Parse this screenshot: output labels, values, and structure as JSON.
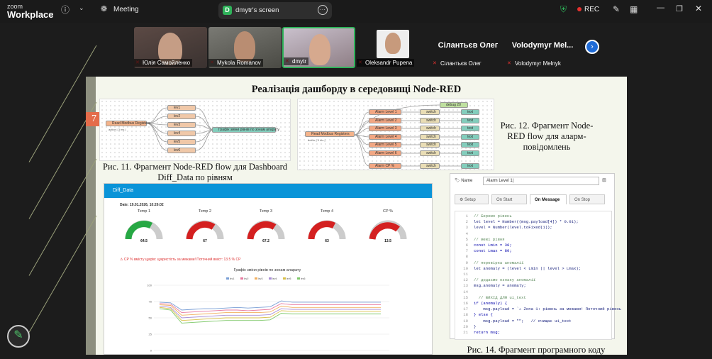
{
  "app": {
    "brand_top": "zoom",
    "brand_bottom": "Workplace",
    "meeting_label": "Meeting"
  },
  "share": {
    "badge": "D",
    "title": "dmytr's screen"
  },
  "rec": {
    "label": "REC",
    "color": "#e5312e"
  },
  "participants": [
    {
      "name": "Юлія Самойленко",
      "type": "video"
    },
    {
      "name": "Mykola Romanov",
      "type": "video"
    },
    {
      "name": "dmytr",
      "type": "video"
    },
    {
      "name": "Oleksandr Pupena",
      "type": "video"
    },
    {
      "name": "Сілантьєв Олег",
      "display": "Сілантьєв Олег",
      "type": "text"
    },
    {
      "name": "Volodymyr Melnyk",
      "display": "Volodymyr Mel...",
      "type": "text"
    }
  ],
  "slide": {
    "number": "7",
    "title": "Реалізація дашборду в середовищі Node-RED",
    "fig11": "Рис. 11. Фрагмент Node-RED flow для Dashboard Diff_Data по рівням",
    "fig12": "Рис. 12. Фрагмент Node-RED flow для аларм-повідомлень",
    "fig14": "Рис. 14. Фрагмент програмного коду",
    "flow1": {
      "source": "Read Modbus Registers",
      "source_status": "active | 3 ms |",
      "levels": [
        "lev1",
        "lev2",
        "lev3",
        "lev4",
        "lev5",
        "lev6"
      ],
      "chart_node": "Графік зміни рівнів по зонам апарату"
    },
    "flow2": {
      "source": "Read Modbus Registers",
      "source_status": "active | 3 ms |",
      "debug": "debug 20",
      "alarms": [
        "Alarm Level 1",
        "Alarm Level 2",
        "Alarm Level 3",
        "Alarm Level 4",
        "Alarm Level 5",
        "Alarm Level 6"
      ],
      "switch": "switch",
      "text": "text",
      "alarm_cp": "Alarm CP %"
    }
  },
  "dashboard": {
    "tab": "Diff_Data",
    "date": "Date: 19.01.2026, 10:26:02",
    "gauges": [
      {
        "label": "Temp 1",
        "value": "64.5",
        "color": "#27a844"
      },
      {
        "label": "Temp 2",
        "value": "67",
        "color": "#d42020"
      },
      {
        "label": "Temp 3",
        "value": "67.2",
        "color": "#d42020"
      },
      {
        "label": "Temp 4",
        "value": "63",
        "color": "#d42020"
      },
      {
        "label": "CP %",
        "value": "13.5",
        "color": "#d42020"
      }
    ],
    "warning": "⚠ CP % вмісту цукрів: цукристість за межами! Поточний вміст: 13.5 % CP",
    "chart_title": "Графік зміни рівнів по зонам апарату",
    "legend": [
      "lev1",
      "lev2",
      "lev3",
      "lev4",
      "lev5",
      "lev6"
    ]
  },
  "chart_data": {
    "type": "line",
    "title": "Графік зміни рівнів по зонам апарату",
    "ylim": [
      0,
      100
    ],
    "yticks": [
      "100",
      "75",
      "50",
      "25",
      "0"
    ],
    "series": [
      {
        "name": "lev1",
        "color": "#7a9fd6",
        "values": [
          74,
          73,
          62,
          63,
          64,
          64,
          65,
          66,
          65,
          66,
          67,
          76,
          74,
          74,
          74,
          74,
          74,
          74,
          74,
          74,
          74
        ]
      },
      {
        "name": "lev2",
        "color": "#e77aa0",
        "values": [
          72,
          71,
          58,
          59,
          60,
          61,
          62,
          62,
          61,
          62,
          63,
          72,
          70,
          70,
          70,
          70,
          70,
          70,
          70,
          70,
          70
        ]
      },
      {
        "name": "lev3",
        "color": "#f2b060",
        "values": [
          70,
          69,
          54,
          55,
          56,
          57,
          58,
          58,
          58,
          58,
          59,
          68,
          66,
          66,
          66,
          66,
          66,
          66,
          66,
          66,
          66
        ]
      },
      {
        "name": "lev4",
        "color": "#a98fd6",
        "values": [
          68,
          66,
          50,
          51,
          52,
          53,
          54,
          54,
          54,
          54,
          55,
          64,
          63,
          63,
          63,
          63,
          63,
          63,
          63,
          63,
          63
        ]
      },
      {
        "name": "lev5",
        "color": "#d9c04a",
        "values": [
          66,
          64,
          46,
          47,
          48,
          49,
          50,
          50,
          50,
          50,
          51,
          61,
          60,
          60,
          60,
          60,
          60,
          60,
          60,
          60,
          60
        ]
      },
      {
        "name": "lev6",
        "color": "#7fc96a",
        "values": [
          64,
          62,
          42,
          43,
          44,
          45,
          46,
          46,
          46,
          46,
          47,
          57,
          56,
          56,
          56,
          56,
          56,
          56,
          56,
          56,
          56
        ]
      }
    ]
  },
  "editor": {
    "name_label": "Name",
    "name_value": "Alarm Level 1|",
    "tabs": [
      "Setup",
      "On Start",
      "On Message",
      "On Stop"
    ],
    "active_tab": "On Message",
    "code": [
      {
        "n": "1",
        "t": "// Беремо рівень",
        "c": "cm"
      },
      {
        "n": "2",
        "t": "let level = Number((msg.payload[4]) * 0.01);",
        "c": ""
      },
      {
        "n": "3",
        "t": "level = Number(level.toFixed(1));",
        "c": ""
      },
      {
        "n": "4",
        "t": "",
        "c": ""
      },
      {
        "n": "5",
        "t": "// межі рівня",
        "c": "cm"
      },
      {
        "n": "6",
        "t": "const Lmin = 30;",
        "c": "kw"
      },
      {
        "n": "7",
        "t": "const Lmax = 80;",
        "c": "kw"
      },
      {
        "n": "8",
        "t": "",
        "c": ""
      },
      {
        "n": "9",
        "t": "// перевірка аномалії",
        "c": "cm"
      },
      {
        "n": "10",
        "t": "let anomaly = (level < Lmin || level > Lmax);",
        "c": ""
      },
      {
        "n": "11",
        "t": "",
        "c": ""
      },
      {
        "n": "12",
        "t": "// додаємо ознаку аномалії",
        "c": "cm"
      },
      {
        "n": "13",
        "t": "msg.anomaly = anomaly;",
        "c": ""
      },
      {
        "n": "14",
        "t": "",
        "c": ""
      },
      {
        "n": "15",
        "t": "  // ВИХІД ДЛЯ ui_text",
        "c": "cm"
      },
      {
        "n": "16",
        "t": "if (anomaly) {",
        "c": "kw"
      },
      {
        "n": "17",
        "t": "    msg.payload = `⚠ Zona 1: рівень за межами! Поточний рівень",
        "c": ""
      },
      {
        "n": "18",
        "t": "} else {",
        "c": "kw"
      },
      {
        "n": "19",
        "t": "    msg.payload = \"\";   // очищає ui_text",
        "c": ""
      },
      {
        "n": "20",
        "t": "}",
        "c": ""
      },
      {
        "n": "21",
        "t": "return msg;",
        "c": "kw"
      }
    ]
  },
  "colors": {
    "accent": "#1f6bd6",
    "dash_header": "#0a94d8",
    "share_badge": "#2fb35a"
  }
}
